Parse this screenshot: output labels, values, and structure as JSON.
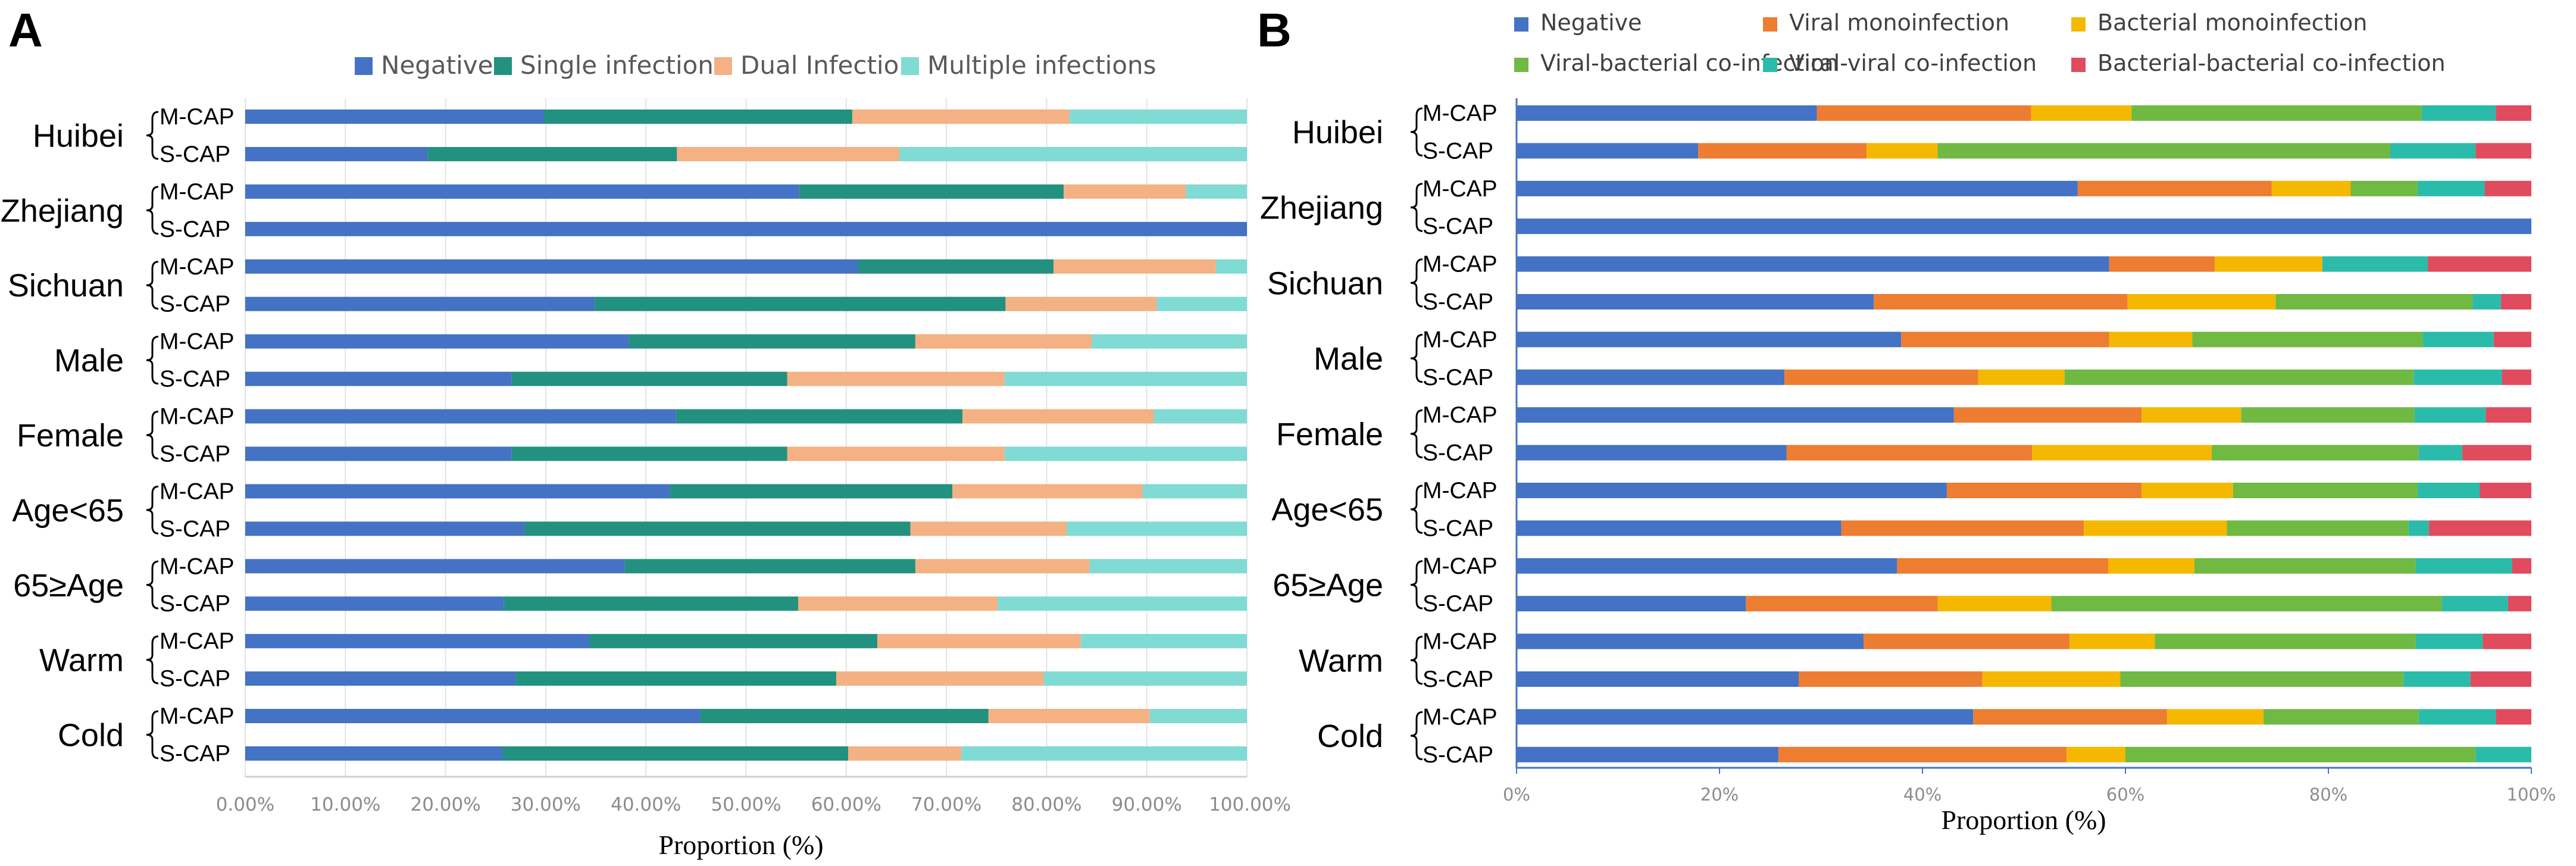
{
  "chart_data": [
    {
      "panel": "A",
      "type": "bar",
      "orientation": "horizontal",
      "stacked": true,
      "xlabel": "Proportion (%)",
      "ticks": [
        "0.00%",
        "10.00%",
        "20.00%",
        "30.00%",
        "40.00%",
        "50.00%",
        "60.00%",
        "70.00%",
        "80.00%",
        "90.00%",
        "100.00%"
      ],
      "xlim": [
        0,
        100
      ],
      "legend": [
        "Negative",
        "Single infection",
        "Dual Infection",
        "Multiple infections"
      ],
      "colors": [
        "#4472c4",
        "#23917f",
        "#f4b183",
        "#7fdbd4"
      ],
      "groups": [
        "Huibei",
        "Zhejiang",
        "Sichuan",
        "Male",
        "Female",
        "Age<65",
        "65≥Age",
        "Warm",
        "Cold"
      ],
      "subgroups": [
        "M-CAP",
        "S-CAP"
      ],
      "rows": [
        {
          "group": "Huibei",
          "sub": "M-CAP",
          "values": [
            29.8,
            30.8,
            21.7,
            17.7
          ]
        },
        {
          "group": "Huibei",
          "sub": "S-CAP",
          "values": [
            18.2,
            24.9,
            22.2,
            34.7
          ]
        },
        {
          "group": "Zhejiang",
          "sub": "M-CAP",
          "values": [
            55.3,
            26.4,
            12.2,
            6.1
          ]
        },
        {
          "group": "Zhejiang",
          "sub": "S-CAP",
          "values": [
            100,
            0,
            0,
            0
          ]
        },
        {
          "group": "Sichuan",
          "sub": "M-CAP",
          "values": [
            61.2,
            19.5,
            16.2,
            3.1
          ]
        },
        {
          "group": "Sichuan",
          "sub": "S-CAP",
          "values": [
            34.9,
            41.0,
            15.1,
            9.0
          ]
        },
        {
          "group": "Male",
          "sub": "M-CAP",
          "values": [
            38.3,
            28.6,
            17.6,
            15.5
          ]
        },
        {
          "group": "Male",
          "sub": "S-CAP",
          "values": [
            26.6,
            27.5,
            21.7,
            24.2
          ]
        },
        {
          "group": "Female",
          "sub": "M-CAP",
          "values": [
            43.0,
            28.6,
            19.1,
            9.3
          ]
        },
        {
          "group": "Female",
          "sub": "S-CAP",
          "values": [
            26.6,
            27.5,
            21.7,
            24.2
          ]
        },
        {
          "group": "Age<65",
          "sub": "M-CAP",
          "values": [
            42.4,
            28.2,
            19.0,
            10.4
          ]
        },
        {
          "group": "Age<65",
          "sub": "S-CAP",
          "values": [
            27.9,
            38.5,
            15.6,
            18.0
          ]
        },
        {
          "group": "65≥Age",
          "sub": "M-CAP",
          "values": [
            37.9,
            29.0,
            17.4,
            15.7
          ]
        },
        {
          "group": "65≥Age",
          "sub": "S-CAP",
          "values": [
            25.8,
            29.4,
            19.9,
            24.9
          ]
        },
        {
          "group": "Warm",
          "sub": "M-CAP",
          "values": [
            34.4,
            28.7,
            20.3,
            16.6
          ]
        },
        {
          "group": "Warm",
          "sub": "S-CAP",
          "values": [
            27.0,
            32.0,
            20.7,
            20.3
          ]
        },
        {
          "group": "Cold",
          "sub": "M-CAP",
          "values": [
            45.4,
            28.8,
            16.1,
            9.7
          ]
        },
        {
          "group": "Cold",
          "sub": "S-CAP",
          "values": [
            25.7,
            34.5,
            11.3,
            28.5
          ]
        }
      ]
    },
    {
      "panel": "B",
      "type": "bar",
      "orientation": "horizontal",
      "stacked": true,
      "xlabel": "Proportion (%)",
      "ticks": [
        "0%",
        "20%",
        "40%",
        "60%",
        "80%",
        "100%"
      ],
      "xlim": [
        0,
        100
      ],
      "legend": [
        "Negative",
        "Viral monoinfection",
        "Bacterial monoinfection",
        "Viral-bacterial co-infection",
        "Viral-viral co-infection",
        "Bacterial-bacterial co-infection"
      ],
      "colors": [
        "#4472c4",
        "#ed7d31",
        "#f5b800",
        "#70b943",
        "#2bbbaa",
        "#e04b5d"
      ],
      "groups": [
        "Huibei",
        "Zhejiang",
        "Sichuan",
        "Male",
        "Female",
        "Age<65",
        "65≥Age",
        "Warm",
        "Cold"
      ],
      "subgroups": [
        "M-CAP",
        "S-CAP"
      ],
      "rows": [
        {
          "group": "Huibei",
          "sub": "M-CAP",
          "values": [
            29.6,
            21.1,
            9.9,
            28.6,
            7.3,
            3.5
          ]
        },
        {
          "group": "Huibei",
          "sub": "S-CAP",
          "values": [
            17.9,
            16.6,
            7.0,
            44.6,
            8.4,
            5.5
          ]
        },
        {
          "group": "Zhejiang",
          "sub": "M-CAP",
          "values": [
            55.3,
            19.1,
            7.8,
            6.6,
            6.6,
            4.6
          ]
        },
        {
          "group": "Zhejiang",
          "sub": "S-CAP",
          "values": [
            100,
            0,
            0,
            0,
            0,
            0
          ]
        },
        {
          "group": "Sichuan",
          "sub": "M-CAP",
          "values": [
            58.4,
            10.4,
            10.6,
            0,
            10.4,
            10.2
          ]
        },
        {
          "group": "Sichuan",
          "sub": "S-CAP",
          "values": [
            35.2,
            25.0,
            14.6,
            19.4,
            2.8,
            3.0
          ]
        },
        {
          "group": "Male",
          "sub": "M-CAP",
          "values": [
            37.9,
            20.5,
            8.2,
            22.7,
            7.0,
            3.7
          ]
        },
        {
          "group": "Male",
          "sub": "S-CAP",
          "values": [
            26.4,
            19.1,
            8.5,
            34.4,
            8.7,
            2.9
          ]
        },
        {
          "group": "Female",
          "sub": "M-CAP",
          "values": [
            43.1,
            18.5,
            9.8,
            17.1,
            7.0,
            4.5
          ]
        },
        {
          "group": "Female",
          "sub": "S-CAP",
          "values": [
            26.6,
            24.2,
            17.7,
            20.4,
            4.3,
            6.8
          ]
        },
        {
          "group": "Age<65",
          "sub": "M-CAP",
          "values": [
            42.4,
            19.2,
            9.0,
            18.2,
            6.1,
            5.1
          ]
        },
        {
          "group": "Age<65",
          "sub": "S-CAP",
          "values": [
            32.0,
            23.9,
            14.1,
            17.9,
            2.0,
            10.1
          ]
        },
        {
          "group": "65≥Age",
          "sub": "M-CAP",
          "values": [
            37.5,
            20.8,
            8.5,
            21.8,
            9.5,
            1.9
          ]
        },
        {
          "group": "65≥Age",
          "sub": "S-CAP",
          "values": [
            22.6,
            18.9,
            11.2,
            38.5,
            6.5,
            2.3
          ]
        },
        {
          "group": "Warm",
          "sub": "M-CAP",
          "values": [
            34.2,
            20.3,
            8.4,
            25.7,
            6.6,
            4.8
          ]
        },
        {
          "group": "Warm",
          "sub": "S-CAP",
          "values": [
            27.8,
            18.1,
            13.6,
            27.9,
            6.6,
            6.0
          ]
        },
        {
          "group": "Cold",
          "sub": "M-CAP",
          "values": [
            45.0,
            19.1,
            9.5,
            15.3,
            7.6,
            3.5
          ]
        },
        {
          "group": "Cold",
          "sub": "S-CAP",
          "values": [
            25.8,
            28.4,
            5.8,
            34.5,
            5.5,
            0
          ]
        }
      ]
    }
  ]
}
